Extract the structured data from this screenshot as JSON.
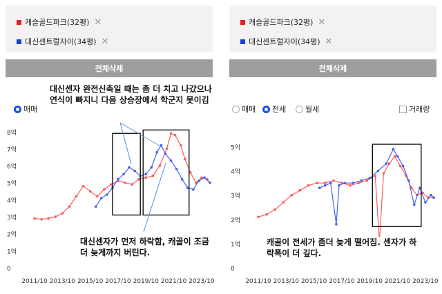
{
  "left": {
    "chips": [
      {
        "label": "캐슬골드파크(32평)",
        "color": "#e8211e",
        "remove": "✕"
      },
      {
        "label": "대신센트럴자이(34평)",
        "color": "#1a3fe0",
        "remove": "✕"
      }
    ],
    "delete_all": "전체삭제",
    "trade_type": "매매",
    "annotation_top": "대신센자 완전신축일 때는 좀 더 치고 나갔으나 연식이 빠지니 다음 상승장에서 학군지 못이김",
    "annotation_bottom": "대신센자가 먼저 하락함, 캐골이 조금 더 늦게까지 버틴다."
  },
  "right": {
    "chips": [
      {
        "label": "캐슬골드파크(32평)",
        "color": "#e8211e",
        "remove": "✕"
      },
      {
        "label": "대신센트럴자이(34평)",
        "color": "#1a3fe0",
        "remove": "✕"
      }
    ],
    "delete_all": "전체삭제",
    "options": {
      "sale": "매매",
      "jeonse": "전세",
      "monthly": "월세"
    },
    "volume_checkbox": "거래량",
    "annotation": "캐골이 전세가 좀더 늦게 떨어짐. 센자가 하락폭이 더 깊다."
  },
  "chart_data": [
    {
      "type": "line",
      "title": "",
      "x_ticks": [
        "2011/10",
        "2013/10",
        "2015/10",
        "2017/10",
        "2019/10",
        "2021/10",
        "2023/10"
      ],
      "y_ticks": [
        "0",
        "1억",
        "2억",
        "3억",
        "4억",
        "5억",
        "6억",
        "7억",
        "8억"
      ],
      "ylim": [
        0,
        8.6
      ],
      "xlim": [
        2011.6,
        2024.6
      ],
      "series": [
        {
          "name": "캐슬골드파크(32평)",
          "color": "#ff5a5a",
          "points": [
            [
              2011.8,
              2.9
            ],
            [
              2012.3,
              2.85
            ],
            [
              2012.8,
              2.9
            ],
            [
              2013.3,
              3.0
            ],
            [
              2013.8,
              3.2
            ],
            [
              2014.3,
              3.6
            ],
            [
              2014.8,
              4.2
            ],
            [
              2015.3,
              4.8
            ],
            [
              2015.8,
              4.5
            ],
            [
              2016.3,
              4.2
            ],
            [
              2016.8,
              4.6
            ],
            [
              2017.3,
              4.9
            ],
            [
              2017.8,
              5.1
            ],
            [
              2018.3,
              5.0
            ],
            [
              2018.8,
              4.9
            ],
            [
              2019.3,
              5.2
            ],
            [
              2019.8,
              5.3
            ],
            [
              2020.3,
              5.4
            ],
            [
              2020.8,
              6.0
            ],
            [
              2021.3,
              7.0
            ],
            [
              2021.6,
              7.9
            ],
            [
              2021.9,
              7.8
            ],
            [
              2022.3,
              7.2
            ],
            [
              2022.6,
              6.4
            ],
            [
              2023.0,
              5.6
            ],
            [
              2023.4,
              5.0
            ],
            [
              2023.8,
              5.3
            ],
            [
              2024.2,
              5.2
            ],
            [
              2024.4,
              5.0
            ]
          ]
        },
        {
          "name": "대신센트럴자이(34평)",
          "color": "#4a5ff0",
          "points": [
            [
              2016.2,
              3.6
            ],
            [
              2016.6,
              4.1
            ],
            [
              2017.0,
              4.3
            ],
            [
              2017.4,
              4.7
            ],
            [
              2017.8,
              5.2
            ],
            [
              2018.2,
              5.5
            ],
            [
              2018.6,
              5.9
            ],
            [
              2019.0,
              5.7
            ],
            [
              2019.4,
              5.4
            ],
            [
              2019.8,
              5.5
            ],
            [
              2020.2,
              5.9
            ],
            [
              2020.6,
              6.8
            ],
            [
              2020.9,
              7.2
            ],
            [
              2021.2,
              6.7
            ],
            [
              2021.6,
              6.3
            ],
            [
              2022.0,
              5.8
            ],
            [
              2022.4,
              5.2
            ],
            [
              2022.8,
              4.7
            ],
            [
              2023.2,
              4.6
            ],
            [
              2023.6,
              5.1
            ],
            [
              2024.0,
              5.3
            ],
            [
              2024.4,
              5.0
            ]
          ]
        }
      ]
    },
    {
      "type": "line",
      "title": "",
      "x_ticks": [
        "2011/10",
        "2013/10",
        "2015/10",
        "2017/10",
        "2019/10",
        "2021/10",
        "2023/10"
      ],
      "y_ticks": [
        "0",
        "1억",
        "2억",
        "3억",
        "4억",
        "5억"
      ],
      "ylim": [
        0,
        5.3
      ],
      "xlim": [
        2011.6,
        2024.6
      ],
      "series": [
        {
          "name": "캐슬골드파크(32평)",
          "color": "#ff5a5a",
          "points": [
            [
              2011.8,
              2.1
            ],
            [
              2012.4,
              2.2
            ],
            [
              2013.0,
              2.4
            ],
            [
              2013.6,
              2.7
            ],
            [
              2014.2,
              3.0
            ],
            [
              2014.8,
              3.2
            ],
            [
              2015.4,
              3.4
            ],
            [
              2016.0,
              3.5
            ],
            [
              2016.6,
              3.5
            ],
            [
              2017.2,
              3.6
            ],
            [
              2017.8,
              3.5
            ],
            [
              2018.4,
              3.4
            ],
            [
              2019.0,
              3.5
            ],
            [
              2019.6,
              3.6
            ],
            [
              2020.2,
              3.8
            ],
            [
              2020.5,
              1.1
            ],
            [
              2020.8,
              3.9
            ],
            [
              2021.2,
              4.3
            ],
            [
              2021.6,
              4.6
            ],
            [
              2022.0,
              4.2
            ],
            [
              2022.4,
              3.8
            ],
            [
              2022.8,
              3.3
            ],
            [
              2023.2,
              3.0
            ],
            [
              2023.6,
              3.1
            ],
            [
              2024.0,
              2.9
            ],
            [
              2024.4,
              2.9
            ]
          ]
        },
        {
          "name": "대신센트럴자이(34평)",
          "color": "#4a5ff0",
          "points": [
            [
              2016.2,
              3.3
            ],
            [
              2016.6,
              3.4
            ],
            [
              2017.0,
              3.5
            ],
            [
              2017.4,
              1.8
            ],
            [
              2017.6,
              3.4
            ],
            [
              2018.0,
              3.5
            ],
            [
              2018.6,
              3.5
            ],
            [
              2019.2,
              3.6
            ],
            [
              2019.8,
              3.7
            ],
            [
              2020.4,
              4.0
            ],
            [
              2021.0,
              4.3
            ],
            [
              2021.5,
              4.9
            ],
            [
              2021.8,
              4.6
            ],
            [
              2022.2,
              4.2
            ],
            [
              2022.6,
              3.6
            ],
            [
              2023.0,
              2.6
            ],
            [
              2023.4,
              3.3
            ],
            [
              2023.8,
              2.7
            ],
            [
              2024.2,
              3.0
            ],
            [
              2024.4,
              2.9
            ]
          ]
        }
      ]
    }
  ]
}
